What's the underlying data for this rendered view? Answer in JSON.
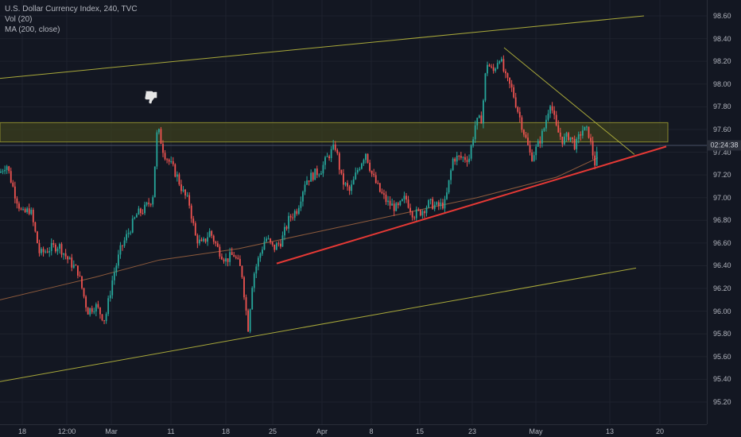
{
  "legend": {
    "line1": "U.S. Dollar Currency Index, 240, TVC",
    "line2": "Vol (20)",
    "line3": "MA (200, close)"
  },
  "countdown": "02:24:38",
  "colors": {
    "background": "#131722",
    "up": "#26a69a",
    "down": "#ef5350",
    "channel": "#a8a83a",
    "support": "#e53935",
    "zone": "#3c3f1d",
    "ma": "#8d5a3c"
  },
  "chart_data": {
    "type": "candlestick",
    "title": "U.S. Dollar Currency Index, 240, TVC",
    "ylim": [
      95.1,
      98.65
    ],
    "y_ticks": [
      95.2,
      95.4,
      95.6,
      95.8,
      96.0,
      96.2,
      96.4,
      96.6,
      96.8,
      97.0,
      97.2,
      97.4,
      97.6,
      97.8,
      98.0,
      98.2,
      98.4,
      98.6
    ],
    "x_ticks": [
      "18",
      "12:00",
      "Mar",
      "11",
      "18",
      "25",
      "Apr",
      "8",
      "15",
      "23",
      "May",
      "13",
      "20"
    ],
    "close_path": [
      [
        0,
        97.22
      ],
      [
        8,
        97.3
      ],
      [
        18,
        97.05
      ],
      [
        28,
        96.85
      ],
      [
        38,
        96.9
      ],
      [
        50,
        96.5
      ],
      [
        62,
        96.55
      ],
      [
        74,
        96.58
      ],
      [
        86,
        96.45
      ],
      [
        98,
        96.35
      ],
      [
        110,
        96.0
      ],
      [
        120,
        96.05
      ],
      [
        132,
        95.92
      ],
      [
        142,
        96.3
      ],
      [
        152,
        96.55
      ],
      [
        162,
        96.7
      ],
      [
        172,
        96.85
      ],
      [
        182,
        96.9
      ],
      [
        192,
        97.0
      ],
      [
        198,
        97.62
      ],
      [
        206,
        97.4
      ],
      [
        214,
        97.3
      ],
      [
        222,
        97.2
      ],
      [
        230,
        97.05
      ],
      [
        238,
        96.95
      ],
      [
        246,
        96.65
      ],
      [
        254,
        96.58
      ],
      [
        264,
        96.7
      ],
      [
        274,
        96.55
      ],
      [
        284,
        96.45
      ],
      [
        294,
        96.5
      ],
      [
        304,
        96.35
      ],
      [
        312,
        95.85
      ],
      [
        318,
        96.3
      ],
      [
        326,
        96.48
      ],
      [
        334,
        96.65
      ],
      [
        344,
        96.55
      ],
      [
        354,
        96.62
      ],
      [
        364,
        96.82
      ],
      [
        374,
        96.9
      ],
      [
        384,
        97.15
      ],
      [
        394,
        97.2
      ],
      [
        404,
        97.25
      ],
      [
        414,
        97.38
      ],
      [
        422,
        97.45
      ],
      [
        430,
        97.15
      ],
      [
        440,
        97.05
      ],
      [
        450,
        97.25
      ],
      [
        460,
        97.4
      ],
      [
        468,
        97.2
      ],
      [
        478,
        97.05
      ],
      [
        488,
        96.95
      ],
      [
        500,
        96.9
      ],
      [
        510,
        97.0
      ],
      [
        520,
        96.85
      ],
      [
        530,
        96.88
      ],
      [
        540,
        96.95
      ],
      [
        550,
        96.92
      ],
      [
        560,
        96.95
      ],
      [
        570,
        97.35
      ],
      [
        580,
        97.35
      ],
      [
        590,
        97.35
      ],
      [
        598,
        97.65
      ],
      [
        606,
        97.7
      ],
      [
        612,
        98.2
      ],
      [
        620,
        98.1
      ],
      [
        628,
        98.25
      ],
      [
        636,
        98.05
      ],
      [
        644,
        97.95
      ],
      [
        652,
        97.75
      ],
      [
        660,
        97.55
      ],
      [
        668,
        97.35
      ],
      [
        676,
        97.45
      ],
      [
        684,
        97.6
      ],
      [
        692,
        97.85
      ],
      [
        700,
        97.6
      ],
      [
        708,
        97.5
      ],
      [
        716,
        97.55
      ],
      [
        724,
        97.45
      ],
      [
        732,
        97.6
      ],
      [
        740,
        97.58
      ],
      [
        748,
        97.3
      ],
      [
        752,
        97.4
      ]
    ],
    "series": [
      {
        "values": [
          [
            0,
            96.1
          ],
          [
            60,
            96.2
          ],
          [
            120,
            96.3
          ],
          [
            200,
            96.45
          ],
          [
            300,
            96.55
          ],
          [
            400,
            96.7
          ],
          [
            500,
            96.85
          ],
          [
            600,
            97.0
          ],
          [
            700,
            97.18
          ],
          [
            752,
            97.35
          ]
        ]
      }
    ],
    "drawings": {
      "channel_upper": [
        [
          0,
          98.05
        ],
        [
          810,
          98.6
        ]
      ],
      "channel_lower": [
        [
          0,
          95.38
        ],
        [
          800,
          96.38
        ]
      ],
      "support_line": [
        [
          348,
          96.42
        ],
        [
          838,
          97.45
        ]
      ],
      "falling_line": [
        [
          634,
          98.32
        ],
        [
          798,
          97.38
        ]
      ],
      "zone": {
        "x": [
          0,
          840
        ],
        "y": [
          97.49,
          97.66
        ]
      },
      "price_line": 97.46
    }
  }
}
